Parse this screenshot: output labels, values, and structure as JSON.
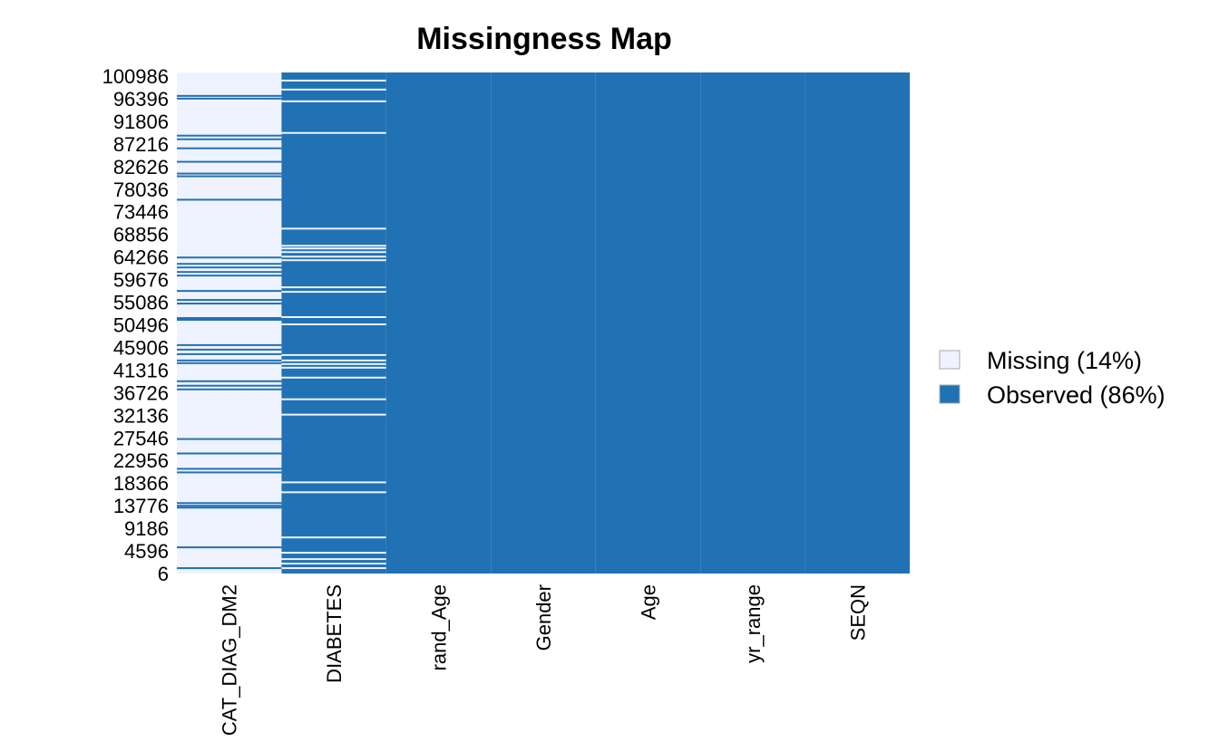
{
  "chart_data": {
    "type": "missmap",
    "title": "Missingness Map",
    "categories": [
      "CAT_DIAG_DM2",
      "DIABETES",
      "rand_Age",
      "Gender",
      "Age",
      "yr_range",
      "SEQN"
    ],
    "series": [
      {
        "name": "Missing (14%)",
        "color": "#eff3ff"
      },
      {
        "name": "Observed (86%)",
        "color": "#2171b5"
      }
    ],
    "base": [
      0,
      1,
      1,
      1,
      1,
      1,
      1
    ],
    "stripes": [
      [
        96970,
        96420,
        88900,
        88170,
        86330,
        83590,
        81200,
        80650,
        75890,
        64160,
        62870,
        62140,
        61220,
        60490,
        57370,
        55540,
        54810,
        51870,
        51510,
        46380,
        45460,
        44540,
        43260,
        42710,
        39040,
        38130,
        37390,
        27310,
        24380,
        21260,
        20530,
        14300,
        13750,
        13380,
        5320,
        1100
      ],
      [
        100080,
        98250,
        95870,
        89450,
        70020,
        66540,
        65990,
        65260,
        64340,
        63610,
        58110,
        57190,
        52060,
        50590,
        44360,
        43260,
        42530,
        41790,
        39780,
        35380,
        32260,
        18510,
        16500,
        7330,
        4220,
        2930,
        2020,
        1100
      ],
      [],
      [],
      [],
      [],
      []
    ],
    "ylim": [
      6,
      100986
    ],
    "yticks": [
      6,
      4596,
      9186,
      13776,
      18366,
      22956,
      27546,
      32136,
      36726,
      41316,
      45906,
      50496,
      55086,
      59676,
      64266,
      68856,
      73446,
      78036,
      82626,
      87216,
      91806,
      96396,
      100986
    ]
  }
}
